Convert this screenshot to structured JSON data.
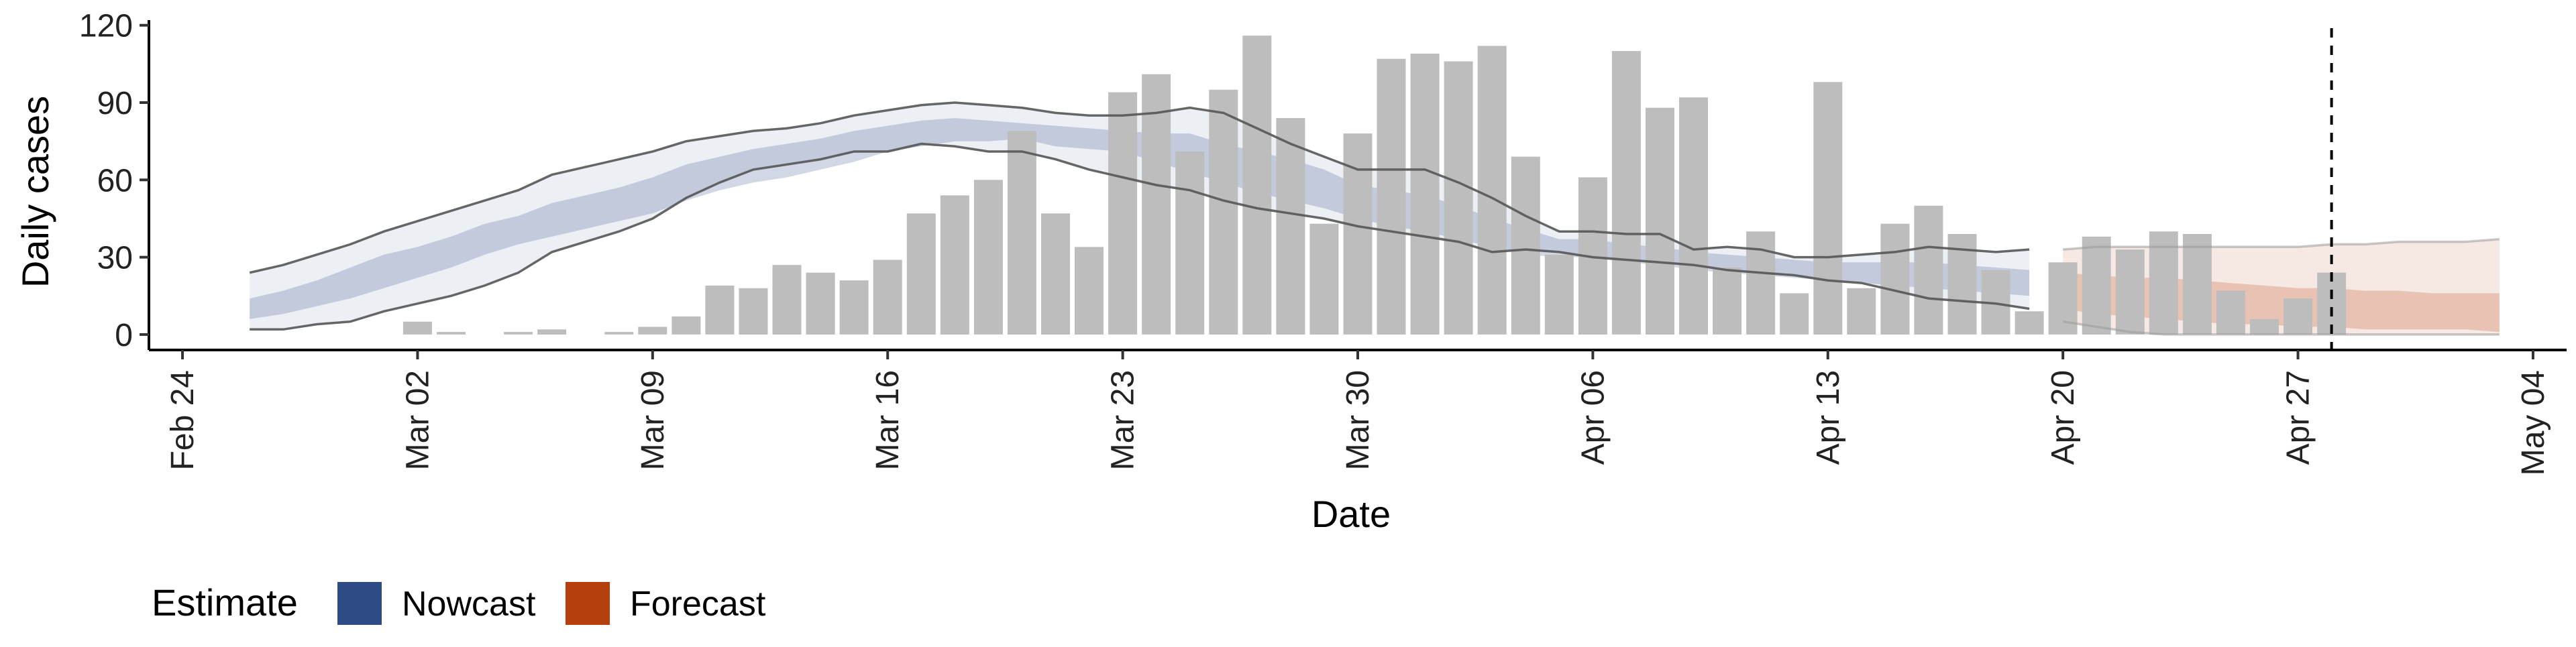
{
  "chart_data": {
    "type": "bar",
    "xlabel": "Date",
    "ylabel": "Daily cases",
    "ylim": [
      -6,
      122
    ],
    "y_ticks": [
      0,
      30,
      60,
      90,
      120
    ],
    "x_range": [
      "2020-02-23",
      "2020-05-05"
    ],
    "x_ticks": [
      {
        "date": "2020-02-24",
        "label": "Feb 24"
      },
      {
        "date": "2020-03-02",
        "label": "Mar 02"
      },
      {
        "date": "2020-03-09",
        "label": "Mar 09"
      },
      {
        "date": "2020-03-16",
        "label": "Mar 16"
      },
      {
        "date": "2020-03-23",
        "label": "Mar 23"
      },
      {
        "date": "2020-03-30",
        "label": "Mar 30"
      },
      {
        "date": "2020-04-06",
        "label": "Apr 06"
      },
      {
        "date": "2020-04-13",
        "label": "Apr 13"
      },
      {
        "date": "2020-04-20",
        "label": "Apr 20"
      },
      {
        "date": "2020-04-27",
        "label": "Apr 27"
      },
      {
        "date": "2020-05-04",
        "label": "May 04"
      }
    ],
    "grid": false,
    "reference_line": {
      "date": "2020-04-28",
      "style": "dashed"
    },
    "bars": {
      "color": "#bdbdbd",
      "dates": [
        "2020-02-26",
        "2020-02-27",
        "2020-02-28",
        "2020-02-29",
        "2020-03-01",
        "2020-03-02",
        "2020-03-03",
        "2020-03-04",
        "2020-03-05",
        "2020-03-06",
        "2020-03-07",
        "2020-03-08",
        "2020-03-09",
        "2020-03-10",
        "2020-03-11",
        "2020-03-12",
        "2020-03-13",
        "2020-03-14",
        "2020-03-15",
        "2020-03-16",
        "2020-03-17",
        "2020-03-18",
        "2020-03-19",
        "2020-03-20",
        "2020-03-21",
        "2020-03-22",
        "2020-03-23",
        "2020-03-24",
        "2020-03-25",
        "2020-03-26",
        "2020-03-27",
        "2020-03-28",
        "2020-03-29",
        "2020-03-30",
        "2020-03-31",
        "2020-04-01",
        "2020-04-02",
        "2020-04-03",
        "2020-04-04",
        "2020-04-05",
        "2020-04-06",
        "2020-04-07",
        "2020-04-08",
        "2020-04-09",
        "2020-04-10",
        "2020-04-11",
        "2020-04-12",
        "2020-04-13",
        "2020-04-14",
        "2020-04-15",
        "2020-04-16",
        "2020-04-17",
        "2020-04-18",
        "2020-04-19",
        "2020-04-20",
        "2020-04-21",
        "2020-04-22",
        "2020-04-23",
        "2020-04-24",
        "2020-04-25",
        "2020-04-26",
        "2020-04-27",
        "2020-04-28"
      ],
      "values": [
        0,
        0,
        0,
        0,
        0,
        5,
        1,
        0,
        1,
        2,
        0,
        1,
        3,
        7,
        19,
        18,
        27,
        24,
        21,
        29,
        47,
        54,
        60,
        79,
        47,
        34,
        94,
        101,
        71,
        95,
        116,
        84,
        43,
        78,
        107,
        109,
        106,
        112,
        69,
        31,
        61,
        110,
        88,
        92,
        26,
        40,
        16,
        98,
        18,
        43,
        50,
        39,
        25,
        9,
        28,
        38,
        33,
        40,
        39,
        17,
        6,
        14,
        24
      ]
    },
    "series": [
      {
        "name": "Nowcast",
        "color": "#2e4a87",
        "dates": [
          "2020-02-26",
          "2020-02-27",
          "2020-02-28",
          "2020-02-29",
          "2020-03-01",
          "2020-03-02",
          "2020-03-03",
          "2020-03-04",
          "2020-03-05",
          "2020-03-06",
          "2020-03-07",
          "2020-03-08",
          "2020-03-09",
          "2020-03-10",
          "2020-03-11",
          "2020-03-12",
          "2020-03-13",
          "2020-03-14",
          "2020-03-15",
          "2020-03-16",
          "2020-03-17",
          "2020-03-18",
          "2020-03-19",
          "2020-03-20",
          "2020-03-21",
          "2020-03-22",
          "2020-03-23",
          "2020-03-24",
          "2020-03-25",
          "2020-03-26",
          "2020-03-27",
          "2020-03-28",
          "2020-03-29",
          "2020-03-30",
          "2020-03-31",
          "2020-04-01",
          "2020-04-02",
          "2020-04-03",
          "2020-04-04",
          "2020-04-05",
          "2020-04-06",
          "2020-04-07",
          "2020-04-08",
          "2020-04-09",
          "2020-04-10",
          "2020-04-11",
          "2020-04-12",
          "2020-04-13",
          "2020-04-14",
          "2020-04-15",
          "2020-04-16",
          "2020-04-17",
          "2020-04-18",
          "2020-04-19"
        ],
        "upper_90": [
          24,
          27,
          31,
          35,
          40,
          44,
          48,
          52,
          56,
          62,
          65,
          68,
          71,
          75,
          77,
          79,
          80,
          82,
          85,
          87,
          89,
          90,
          89,
          88,
          86,
          85,
          85,
          86,
          88,
          86,
          80,
          74,
          69,
          64,
          64,
          64,
          59,
          53,
          46,
          40,
          40,
          39,
          39,
          33,
          34,
          33,
          30,
          30,
          31,
          32,
          34,
          33,
          32,
          33
        ],
        "upper_50": [
          14,
          17,
          21,
          26,
          31,
          34,
          38,
          43,
          46,
          51,
          54,
          57,
          61,
          66,
          69,
          72,
          74,
          76,
          79,
          81,
          83,
          84,
          83,
          82,
          81,
          80,
          79,
          78,
          78,
          74,
          71,
          68,
          64,
          58,
          56,
          54,
          50,
          45,
          41,
          37,
          37,
          35,
          34,
          32,
          31,
          30,
          29,
          28,
          28,
          28,
          28,
          27,
          26,
          25
        ],
        "median": [
          10,
          12,
          15,
          19,
          24,
          28,
          32,
          37,
          40,
          44,
          47,
          50,
          53,
          58,
          62,
          65,
          67,
          70,
          73,
          76,
          78,
          80,
          79,
          79,
          77,
          76,
          75,
          72,
          68,
          64,
          60,
          57,
          54,
          50,
          47,
          45,
          42,
          38,
          35,
          33,
          33,
          31,
          30,
          28,
          27,
          26,
          25,
          24,
          24,
          23,
          22,
          21,
          21,
          20
        ],
        "lower_50": [
          6,
          8,
          11,
          14,
          18,
          22,
          26,
          31,
          35,
          38,
          41,
          44,
          47,
          52,
          56,
          59,
          61,
          64,
          67,
          71,
          73,
          75,
          75,
          76,
          73,
          72,
          71,
          67,
          63,
          59,
          55,
          52,
          49,
          45,
          42,
          40,
          37,
          34,
          31,
          30,
          30,
          28,
          27,
          25,
          24,
          23,
          22,
          21,
          20,
          19,
          18,
          17,
          16,
          15
        ],
        "lower_90": [
          2,
          2,
          4,
          5,
          9,
          12,
          15,
          19,
          24,
          32,
          36,
          40,
          45,
          53,
          59,
          64,
          66,
          68,
          71,
          71,
          74,
          73,
          71,
          71,
          68,
          64,
          61,
          58,
          56,
          52,
          49,
          47,
          45,
          42,
          40,
          38,
          36,
          32,
          33,
          32,
          30,
          29,
          28,
          27,
          25,
          24,
          23,
          21,
          20,
          17,
          14,
          13,
          12,
          10
        ]
      },
      {
        "name": "Forecast",
        "color": "#b5400d",
        "dates": [
          "2020-04-20",
          "2020-04-21",
          "2020-04-22",
          "2020-04-23",
          "2020-04-24",
          "2020-04-25",
          "2020-04-26",
          "2020-04-27",
          "2020-04-28",
          "2020-04-29",
          "2020-04-30",
          "2020-05-01",
          "2020-05-02",
          "2020-05-03"
        ],
        "upper_90": [
          33,
          34,
          34,
          34,
          34,
          34,
          34,
          34,
          35,
          35,
          36,
          36,
          36,
          37
        ],
        "upper_50": [
          24,
          23,
          22,
          22,
          21,
          20,
          19,
          18,
          18,
          17,
          17,
          16,
          16,
          16
        ],
        "median": [
          17,
          15,
          14,
          13,
          12,
          11,
          10,
          10,
          9,
          9,
          8,
          8,
          8,
          8
        ],
        "lower_50": [
          10,
          8,
          7,
          6,
          5,
          4,
          4,
          3,
          3,
          2,
          2,
          2,
          2,
          1
        ],
        "lower_90": [
          5,
          3,
          1,
          0,
          0,
          0,
          0,
          0,
          0,
          0,
          0,
          0,
          0,
          0
        ]
      }
    ],
    "legend": {
      "title": "Estimate",
      "position": "bottom-left",
      "items": [
        {
          "label": "Nowcast",
          "color": "#2e4a87"
        },
        {
          "label": "Forecast",
          "color": "#b5400d"
        }
      ]
    }
  }
}
